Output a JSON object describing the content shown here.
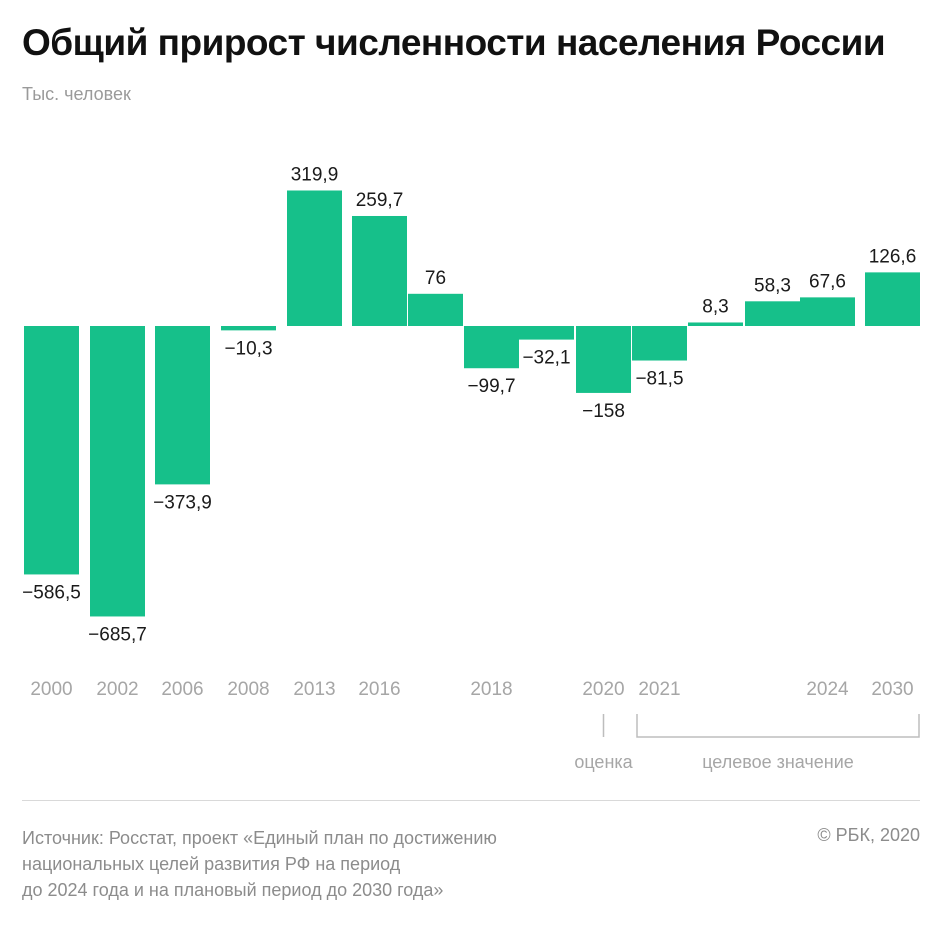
{
  "title": "Общий прирост численности населения России",
  "subtitle": "Тыс. человек",
  "footer": {
    "source_line1": "Источник: Росстат, проект «Единый план по достижению",
    "source_line2": "национальных целей развития РФ на период",
    "source_line3": "до 2024 года и на плановый период до 2030 года»",
    "copyright": "© РБК, 2020"
  },
  "chart_data": {
    "type": "bar",
    "title": "Общий прирост численности населения России",
    "ylabel": "Тыс. человек",
    "bar_color": "#16c08a",
    "axis_label_color": "#a6a6a6",
    "value_label_color": "#1a1a1a",
    "categories": [
      "2000",
      "2002",
      "2006",
      "2008",
      "2013",
      "2016",
      "",
      "2018",
      "",
      "2020",
      "2021",
      "",
      "",
      "2024",
      "2030"
    ],
    "values": [
      -586.5,
      -685.7,
      -373.9,
      -10.3,
      319.9,
      259.7,
      76,
      -99.7,
      -32.1,
      -158,
      -81.5,
      8.3,
      58.3,
      67.6,
      126.6
    ],
    "value_labels": [
      "−586,5",
      "−685,7",
      "−373,9",
      "−10,3",
      "319,9",
      "259,7",
      "76",
      "−99,7",
      "−32,1",
      "−158",
      "−81,5",
      "8,3",
      "58,3",
      "67,6",
      "126,6"
    ],
    "annotations": [
      {
        "text": "оценка",
        "applies_to": [
          "2020"
        ]
      },
      {
        "text": "целевое значение",
        "applies_to": [
          "2021",
          "2024",
          "2030"
        ]
      }
    ],
    "grid": false,
    "legend": "none"
  }
}
